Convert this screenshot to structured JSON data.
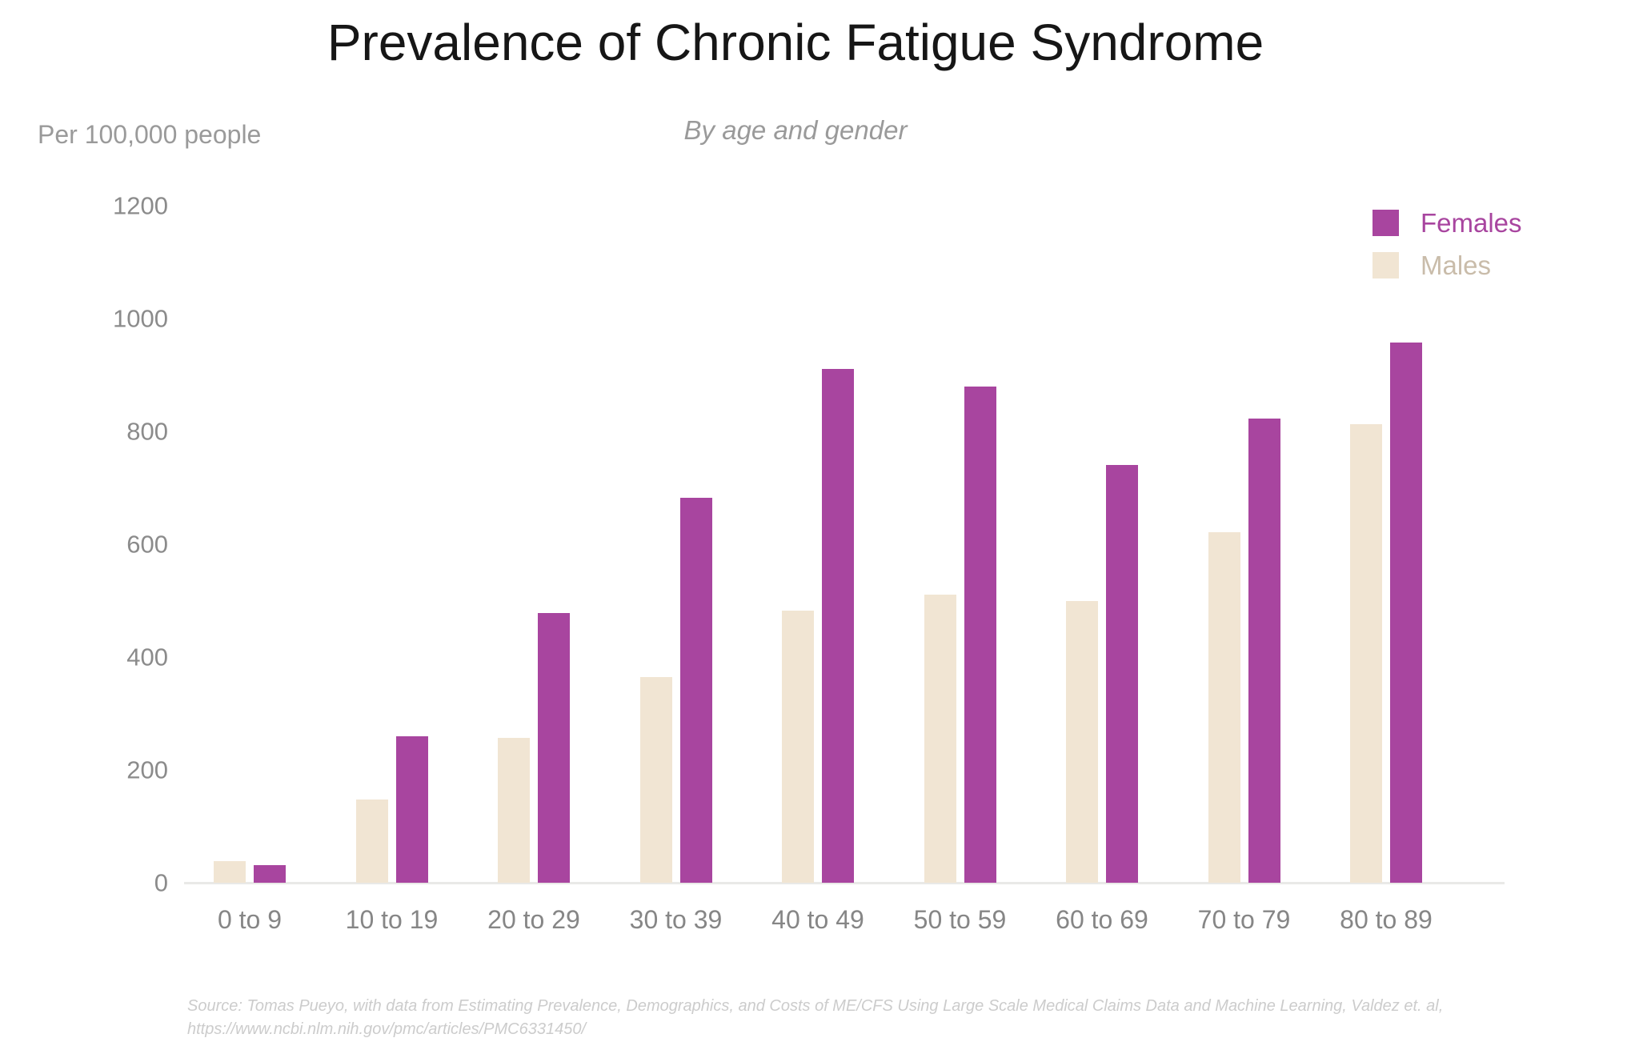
{
  "chart": {
    "title": "Prevalence of Chronic Fatigue Syndrome",
    "subtitle": "By age and gender",
    "unit_label": "Per 100,000 people"
  },
  "chart_data": {
    "type": "bar",
    "title": "Prevalence of Chronic Fatigue Syndrome",
    "subtitle": "By age and gender",
    "xlabel": "",
    "ylabel": "Per 100,000 people",
    "categories": [
      "0 to 9",
      "10 to 19",
      "20 to 29",
      "30 to 39",
      "40 to 49",
      "50 to 59",
      "60 to 69",
      "70 to 79",
      "80 to 89"
    ],
    "series": [
      {
        "name": "Males",
        "color": "#f1e5d3",
        "values": [
          38,
          147,
          257,
          364,
          482,
          510,
          500,
          622,
          813
        ]
      },
      {
        "name": "Females",
        "color": "#a8459f",
        "values": [
          31,
          260,
          478,
          683,
          911,
          880,
          740,
          823,
          958
        ]
      }
    ],
    "ylim": [
      0,
      1200
    ],
    "yticks": [
      0,
      200,
      400,
      600,
      800,
      1000,
      1200
    ],
    "grid": false,
    "legend_position": "top-right",
    "note": "Males drawn as left bar of each pair, Females as right bar"
  },
  "legend": {
    "items": [
      {
        "label": "Females",
        "swatch_color": "#a8459f",
        "text_color": "#a8459f"
      },
      {
        "label": "Males",
        "swatch_color": "#f1e5d3",
        "text_color": "#c9bcaa"
      }
    ]
  },
  "source": {
    "line1": "Source: Tomas Pueyo, with data from Estimating Prevalence, Demographics, and Costs of ME/CFS Using Large Scale Medical Claims Data and Machine Learning, Valdez et. al,",
    "line2": "https://www.ncbi.nlm.nih.gov/pmc/articles/PMC6331450/"
  }
}
